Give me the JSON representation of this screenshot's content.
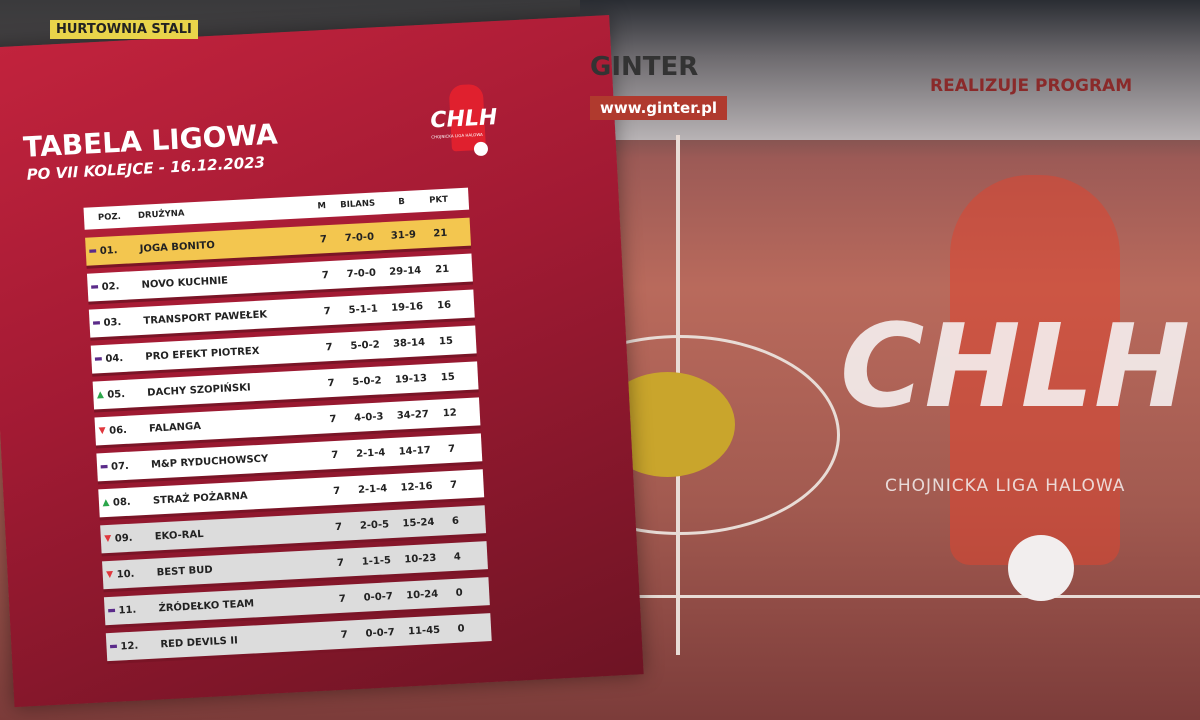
{
  "background": {
    "banners": [
      "HURTOWNIA STALI",
      "GINTER",
      "www.ginter.pl",
      "REALIZUJE PROGRAM"
    ],
    "logo_text": "CHLH",
    "logo_subtitle": "CHOJNICKA LIGA HALOWA"
  },
  "card": {
    "title": "TABELA LIGOWA",
    "subtitle": "PO VII KOLEJCE - 16.12.2023",
    "logo_text": "CHLH",
    "logo_subtitle": "CHOJNICKA LIGA HALOWA"
  },
  "table": {
    "headers": {
      "pos": "POZ.",
      "team": "DRUŻYNA",
      "m": "M",
      "bilans": "BILANS",
      "b": "B",
      "pkt": "PKT"
    },
    "rows": [
      {
        "trend": "same",
        "pos": "01.",
        "team": "JOGA BONITO",
        "m": "7",
        "bilans": "7-0-0",
        "b": "31-9",
        "pkt": "21"
      },
      {
        "trend": "same",
        "pos": "02.",
        "team": "NOVO KUCHNIE",
        "m": "7",
        "bilans": "7-0-0",
        "b": "29-14",
        "pkt": "21"
      },
      {
        "trend": "same",
        "pos": "03.",
        "team": "TRANSPORT PAWEŁEK",
        "m": "7",
        "bilans": "5-1-1",
        "b": "19-16",
        "pkt": "16"
      },
      {
        "trend": "same",
        "pos": "04.",
        "team": "PRO EFEKT PIOTREX",
        "m": "7",
        "bilans": "5-0-2",
        "b": "38-14",
        "pkt": "15"
      },
      {
        "trend": "up",
        "pos": "05.",
        "team": "DACHY SZOPIŃSKI",
        "m": "7",
        "bilans": "5-0-2",
        "b": "19-13",
        "pkt": "15"
      },
      {
        "trend": "down",
        "pos": "06.",
        "team": "FALANGA",
        "m": "7",
        "bilans": "4-0-3",
        "b": "34-27",
        "pkt": "12"
      },
      {
        "trend": "same",
        "pos": "07.",
        "team": "M&P RYDUCHOWSCY",
        "m": "7",
        "bilans": "2-1-4",
        "b": "14-17",
        "pkt": "7"
      },
      {
        "trend": "up",
        "pos": "08.",
        "team": "STRAŻ POŻARNA",
        "m": "7",
        "bilans": "2-1-4",
        "b": "12-16",
        "pkt": "7"
      },
      {
        "trend": "down",
        "pos": "09.",
        "team": "EKO-RAL",
        "m": "7",
        "bilans": "2-0-5",
        "b": "15-24",
        "pkt": "6"
      },
      {
        "trend": "down",
        "pos": "10.",
        "team": "BEST BUD",
        "m": "7",
        "bilans": "1-1-5",
        "b": "10-23",
        "pkt": "4"
      },
      {
        "trend": "same",
        "pos": "11.",
        "team": "ŹRÓDEŁKO TEAM",
        "m": "7",
        "bilans": "0-0-7",
        "b": "10-24",
        "pkt": "0"
      },
      {
        "trend": "same",
        "pos": "12.",
        "team": "RED DEVILS II",
        "m": "7",
        "bilans": "0-0-7",
        "b": "11-45",
        "pkt": "0"
      }
    ]
  },
  "colors": {
    "card": "#a11a33",
    "highlight": "#f3c64f",
    "up": "#2aa64a",
    "down": "#e0373d",
    "same": "#5b2b8a"
  }
}
